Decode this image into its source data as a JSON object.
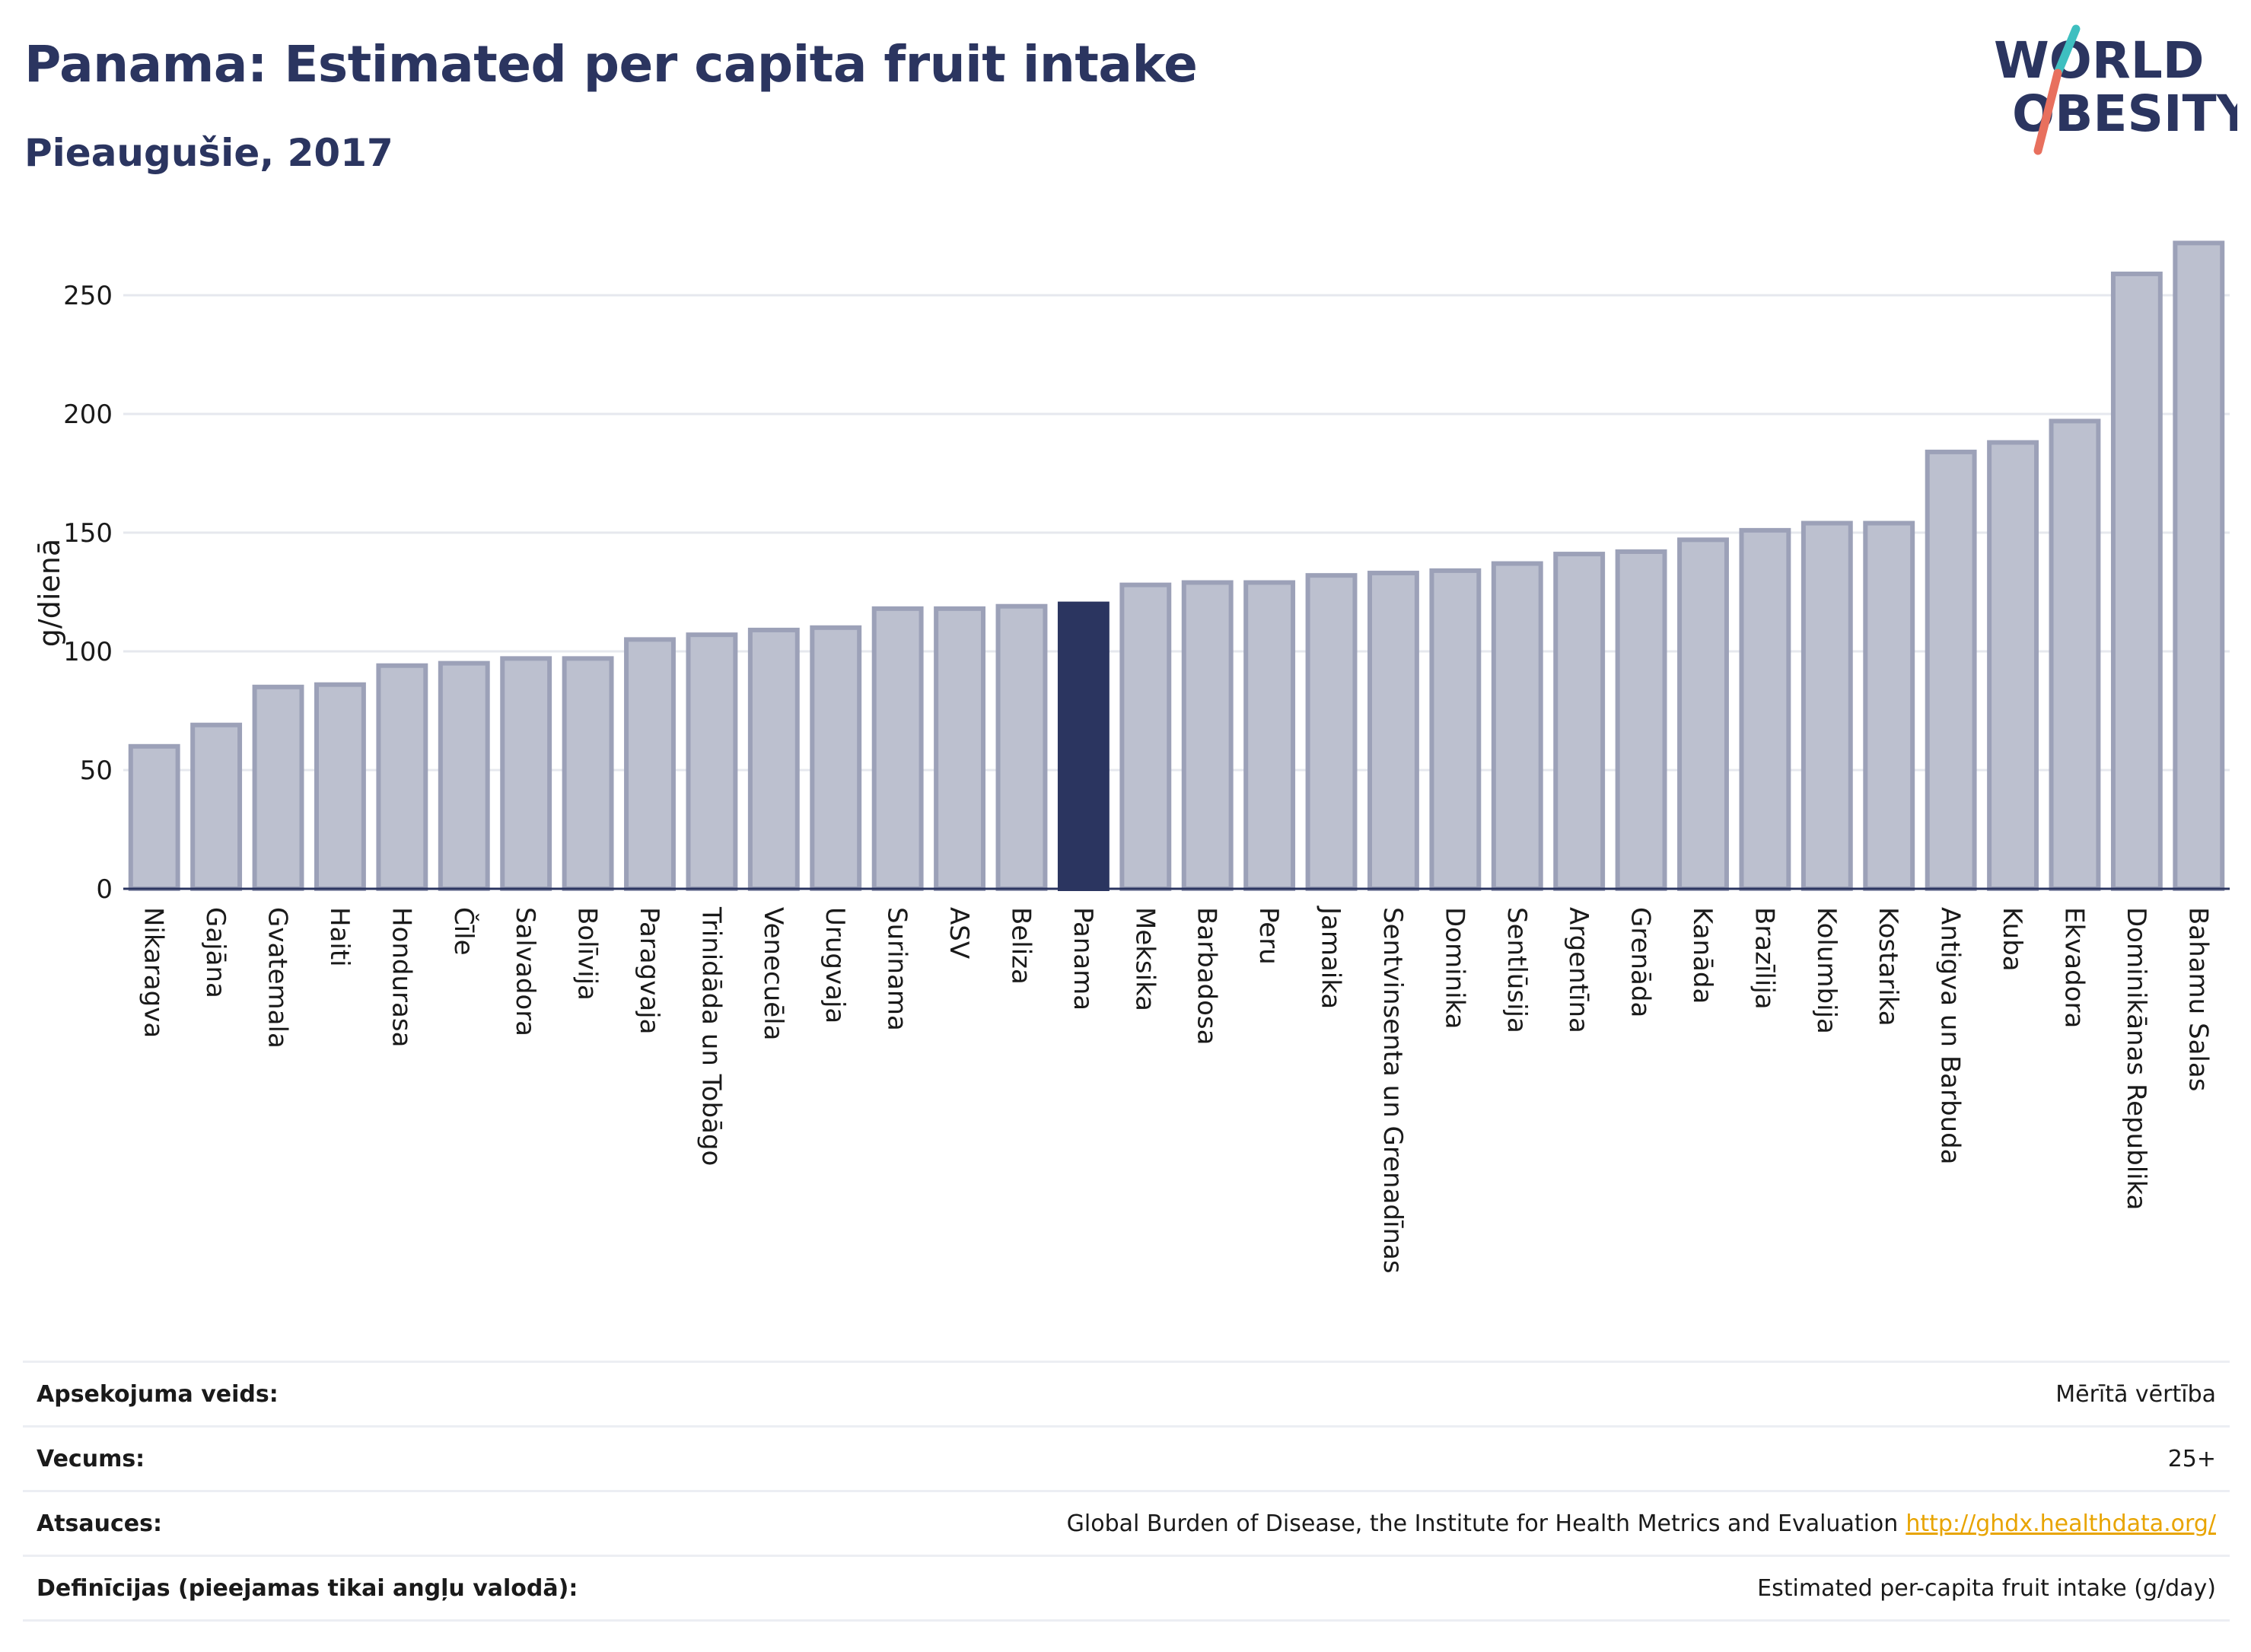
{
  "header": {
    "title": "Panama: Estimated per capita fruit intake",
    "subtitle": "Pieaugušie, 2017"
  },
  "logo": {
    "line1": "WORLD",
    "line2": "OBESITY"
  },
  "colors": {
    "bar": "#bcc0cf",
    "bar_border": "#9ca1b8",
    "highlight": "#2b3560",
    "grid": "#e6e8ee",
    "link": "#e8a400"
  },
  "chart_data": {
    "type": "bar",
    "ylabel": "g/dienā",
    "ylim": [
      0,
      275
    ],
    "yticks": [
      0,
      50,
      100,
      150,
      200,
      250
    ],
    "grid": true,
    "highlight": "Panama",
    "categories": [
      "Nikaragva",
      "Gajāna",
      "Gvatemala",
      "Haiti",
      "Hondurasa",
      "Čīle",
      "Salvadora",
      "Bolīvija",
      "Paragvaja",
      "Trinidāda un Tobāgo",
      "Venecuēla",
      "Urugvaja",
      "Surinama",
      "ASV",
      "Beliza",
      "Panama",
      "Meksika",
      "Barbadosa",
      "Peru",
      "Jamaika",
      "Sentvinsenta un Grenadīnas",
      "Dominika",
      "Sentlūsija",
      "Argentīna",
      "Grenāda",
      "Kanāda",
      "Brazīlija",
      "Kolumbija",
      "Kostarika",
      "Antigva un Barbuda",
      "Kuba",
      "Ekvadora",
      "Dominikānas Republika",
      "Bahamu Salas"
    ],
    "values": [
      60,
      69,
      85,
      86,
      94,
      95,
      97,
      97,
      105,
      107,
      109,
      110,
      118,
      118,
      119,
      120,
      128,
      129,
      129,
      132,
      133,
      134,
      137,
      141,
      142,
      147,
      151,
      154,
      154,
      184,
      188,
      197,
      259,
      272
    ]
  },
  "meta": [
    {
      "label": "Apsekojuma veids:",
      "value": "Mērītā vērtība"
    },
    {
      "label": "Vecums:",
      "value": "25+"
    },
    {
      "label": "Atsauces:",
      "value": "Global Burden of Disease, the Institute for Health Metrics and Evaluation",
      "link": "http://ghdx.healthdata.org/"
    },
    {
      "label": "Definīcijas (pieejamas tikai angļu valodā):",
      "value": "Estimated per-capita fruit intake (g/day)"
    }
  ]
}
